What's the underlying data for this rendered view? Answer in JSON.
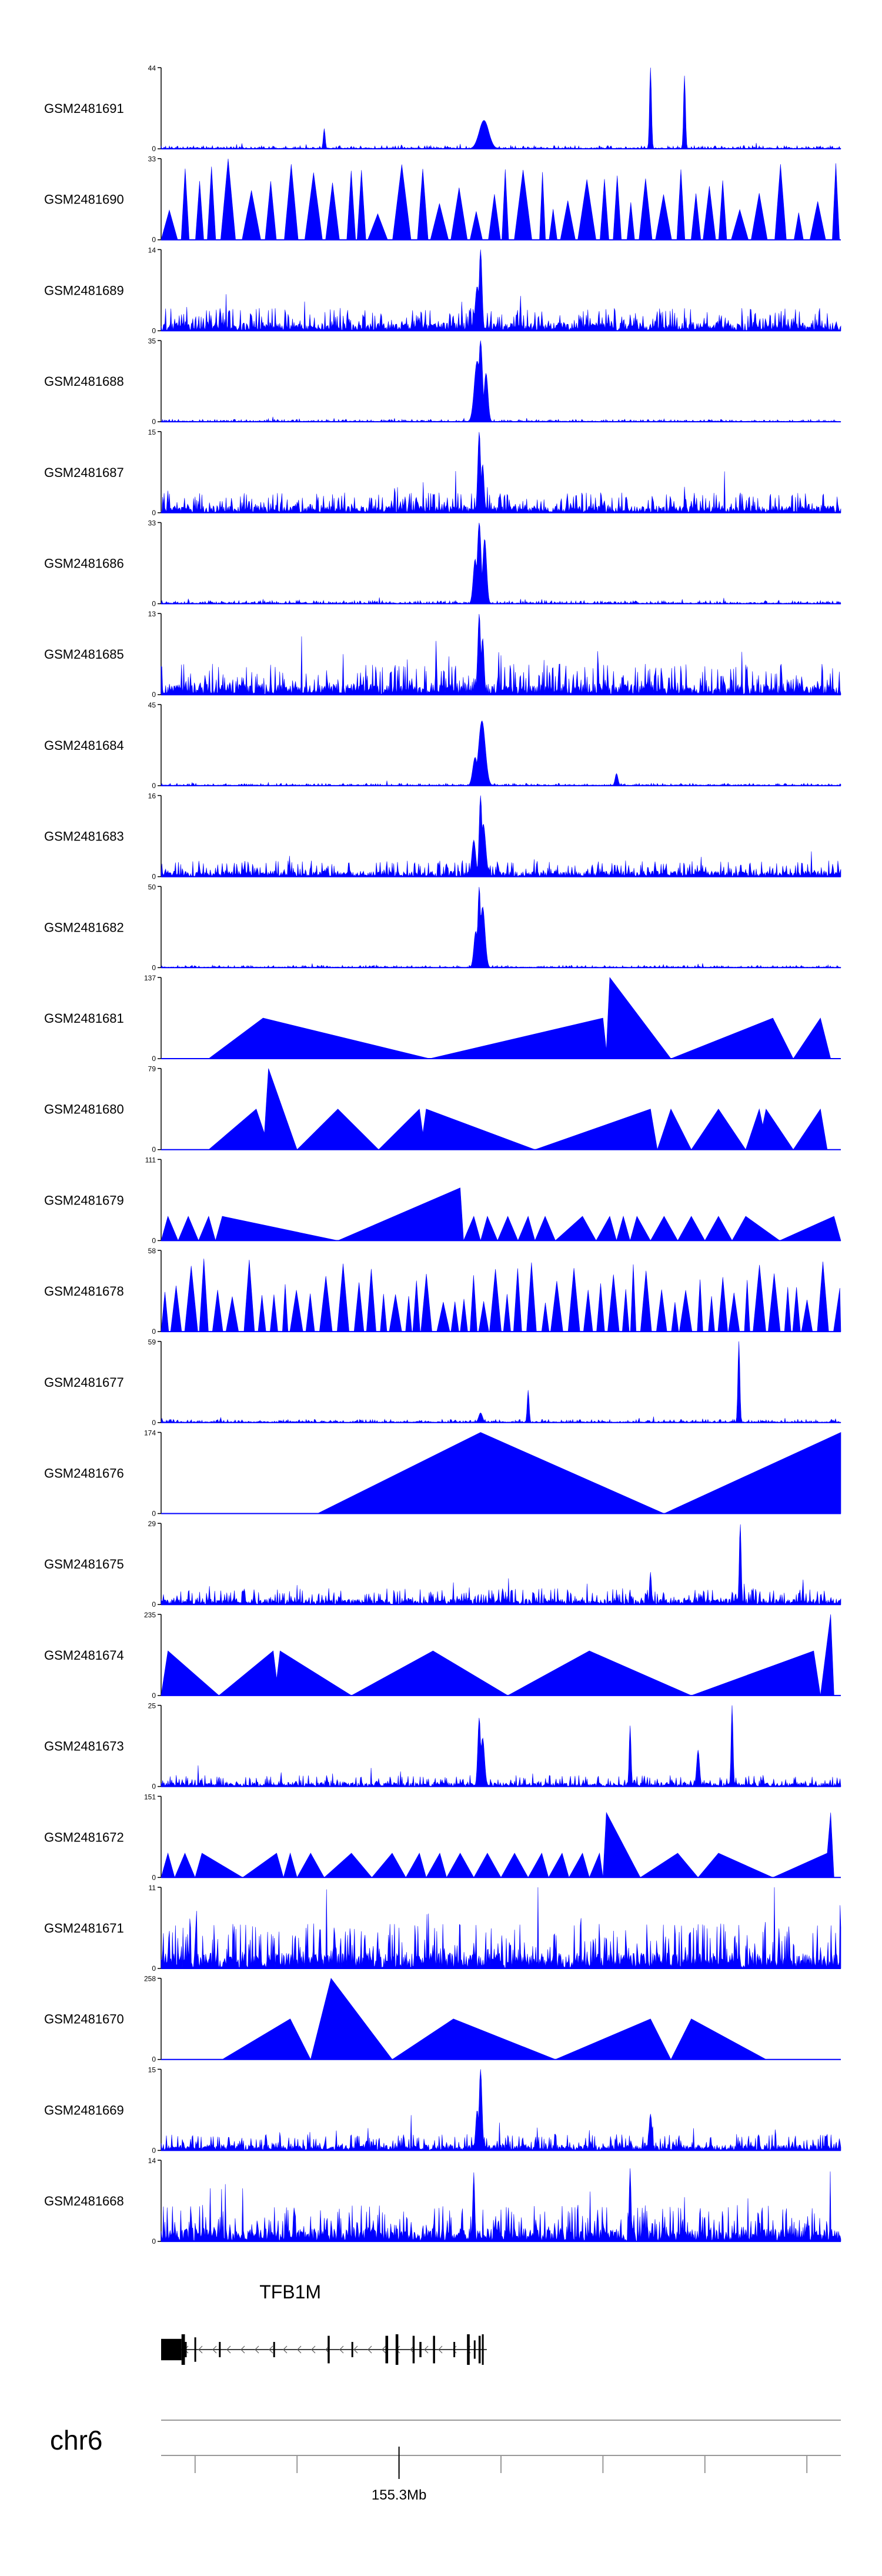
{
  "chart_data": {
    "type": "area",
    "color": "#0000ff",
    "axis_color": "#000000",
    "tracks": [
      {
        "label": "GSM2481691",
        "ymax": "44",
        "ymin": "0",
        "style": "dense",
        "seed": 11,
        "noise": 0.04,
        "peaks": [
          [
            0.475,
            0.35,
            0.01
          ],
          [
            0.72,
            1.0,
            0.002
          ],
          [
            0.77,
            0.9,
            0.002
          ],
          [
            0.24,
            0.25,
            0.002
          ]
        ]
      },
      {
        "label": "GSM2481690",
        "ymax": "33",
        "ymin": "0",
        "style": "spikes",
        "seed": 12,
        "noise": 0.0,
        "peaks": [],
        "tri": {
          "count": 34,
          "gapMin": 0.002,
          "gapMax": 0.012,
          "lowW": 0.008,
          "highW": 0.03,
          "hmin": 0.3,
          "hmax": 1.0
        }
      },
      {
        "label": "GSM2481689",
        "ymax": "14",
        "ymin": "0",
        "style": "dense",
        "seed": 13,
        "noise": 0.28,
        "peaks": [
          [
            0.47,
            1.0,
            0.003
          ],
          [
            0.465,
            0.55,
            0.004
          ]
        ]
      },
      {
        "label": "GSM2481688",
        "ymax": "35",
        "ymin": "0",
        "style": "dense",
        "seed": 14,
        "noise": 0.03,
        "peaks": [
          [
            0.47,
            1.0,
            0.004
          ],
          [
            0.465,
            0.75,
            0.006
          ],
          [
            0.478,
            0.6,
            0.004
          ]
        ]
      },
      {
        "label": "GSM2481687",
        "ymax": "15",
        "ymin": "0",
        "style": "dense",
        "seed": 15,
        "noise": 0.25,
        "peaks": [
          [
            0.468,
            1.0,
            0.003
          ],
          [
            0.473,
            0.6,
            0.003
          ]
        ]
      },
      {
        "label": "GSM2481686",
        "ymax": "33",
        "ymin": "0",
        "style": "dense",
        "seed": 16,
        "noise": 0.04,
        "peaks": [
          [
            0.468,
            1.0,
            0.004
          ],
          [
            0.476,
            0.8,
            0.004
          ],
          [
            0.462,
            0.55,
            0.004
          ]
        ]
      },
      {
        "label": "GSM2481685",
        "ymax": "13",
        "ymin": "0",
        "style": "dense",
        "seed": 17,
        "noise": 0.38,
        "peaks": [
          [
            0.468,
            1.0,
            0.003
          ],
          [
            0.473,
            0.7,
            0.003
          ]
        ]
      },
      {
        "label": "GSM2481684",
        "ymax": "45",
        "ymin": "0",
        "style": "dense",
        "seed": 18,
        "noise": 0.03,
        "peaks": [
          [
            0.472,
            0.8,
            0.007
          ],
          [
            0.462,
            0.35,
            0.005
          ],
          [
            0.67,
            0.15,
            0.003
          ]
        ]
      },
      {
        "label": "GSM2481683",
        "ymax": "16",
        "ymin": "0",
        "style": "dense",
        "seed": 19,
        "noise": 0.2,
        "peaks": [
          [
            0.47,
            1.0,
            0.003
          ],
          [
            0.474,
            0.65,
            0.005
          ],
          [
            0.46,
            0.45,
            0.004
          ]
        ]
      },
      {
        "label": "GSM2481682",
        "ymax": "50",
        "ymin": "0",
        "style": "dense",
        "seed": 20,
        "noise": 0.03,
        "peaks": [
          [
            0.468,
            1.0,
            0.003
          ],
          [
            0.473,
            0.75,
            0.005
          ],
          [
            0.463,
            0.45,
            0.004
          ]
        ]
      },
      {
        "label": "GSM2481681",
        "ymax": "137",
        "ymin": "0",
        "style": "poly",
        "pts": [
          [
            0.07,
            0.0
          ],
          [
            0.15,
            0.5
          ],
          [
            0.395,
            0.0
          ],
          [
            0.65,
            0.5
          ],
          [
            0.655,
            0.1
          ],
          [
            0.66,
            1.0
          ],
          [
            0.75,
            0.0
          ],
          [
            0.9,
            0.5
          ],
          [
            0.93,
            0.0
          ],
          [
            0.97,
            0.5
          ],
          [
            0.985,
            0.0
          ]
        ]
      },
      {
        "label": "GSM2481680",
        "ymax": "79",
        "ymin": "0",
        "style": "poly",
        "pts": [
          [
            0.07,
            0.0
          ],
          [
            0.14,
            0.5
          ],
          [
            0.152,
            0.2
          ],
          [
            0.158,
            1.0
          ],
          [
            0.2,
            0.0
          ],
          [
            0.26,
            0.5
          ],
          [
            0.32,
            0.0
          ],
          [
            0.38,
            0.5
          ],
          [
            0.385,
            0.2
          ],
          [
            0.39,
            0.5
          ],
          [
            0.55,
            0.0
          ],
          [
            0.72,
            0.5
          ],
          [
            0.73,
            0.0
          ],
          [
            0.75,
            0.5
          ],
          [
            0.78,
            0.0
          ],
          [
            0.82,
            0.5
          ],
          [
            0.86,
            0.0
          ],
          [
            0.88,
            0.5
          ],
          [
            0.885,
            0.3
          ],
          [
            0.89,
            0.5
          ],
          [
            0.93,
            0.0
          ],
          [
            0.97,
            0.5
          ],
          [
            0.98,
            0.0
          ]
        ]
      },
      {
        "label": "GSM2481679",
        "ymax": "111",
        "ymin": "0",
        "style": "poly",
        "pts": [
          [
            0.0,
            0.0
          ],
          [
            0.01,
            0.3
          ],
          [
            0.025,
            0.0
          ],
          [
            0.04,
            0.3
          ],
          [
            0.055,
            0.0
          ],
          [
            0.07,
            0.3
          ],
          [
            0.08,
            0.0
          ],
          [
            0.09,
            0.3
          ],
          [
            0.26,
            0.0
          ],
          [
            0.44,
            0.65
          ],
          [
            0.445,
            0.0
          ],
          [
            0.46,
            0.3
          ],
          [
            0.47,
            0.0
          ],
          [
            0.48,
            0.3
          ],
          [
            0.495,
            0.0
          ],
          [
            0.51,
            0.3
          ],
          [
            0.525,
            0.0
          ],
          [
            0.54,
            0.3
          ],
          [
            0.55,
            0.0
          ],
          [
            0.565,
            0.3
          ],
          [
            0.58,
            0.0
          ],
          [
            0.62,
            0.3
          ],
          [
            0.64,
            0.0
          ],
          [
            0.66,
            0.3
          ],
          [
            0.67,
            0.0
          ],
          [
            0.68,
            0.3
          ],
          [
            0.69,
            0.0
          ],
          [
            0.7,
            0.3
          ],
          [
            0.72,
            0.0
          ],
          [
            0.74,
            0.3
          ],
          [
            0.76,
            0.0
          ],
          [
            0.78,
            0.3
          ],
          [
            0.8,
            0.0
          ],
          [
            0.82,
            0.3
          ],
          [
            0.84,
            0.0
          ],
          [
            0.86,
            0.3
          ],
          [
            0.91,
            0.0
          ],
          [
            0.99,
            0.3
          ],
          [
            1.0,
            0.0
          ]
        ]
      },
      {
        "label": "GSM2481678",
        "ymax": "58",
        "ymin": "0",
        "style": "spikes",
        "seed": 21,
        "noise": 0.0,
        "peaks": [],
        "tri": {
          "count": 36,
          "gapMin": 0.001,
          "gapMax": 0.008,
          "lowW": 0.008,
          "highW": 0.02,
          "hmin": 0.35,
          "hmax": 0.9
        }
      },
      {
        "label": "GSM2481677",
        "ymax": "59",
        "ymin": "0",
        "style": "dense",
        "seed": 22,
        "noise": 0.04,
        "peaks": [
          [
            0.85,
            1.0,
            0.002
          ],
          [
            0.54,
            0.4,
            0.002
          ],
          [
            0.47,
            0.12,
            0.004
          ]
        ]
      },
      {
        "label": "GSM2481676",
        "ymax": "174",
        "ymin": "0",
        "style": "poly",
        "pts": [
          [
            0.23,
            0.0
          ],
          [
            0.47,
            1.0
          ],
          [
            0.74,
            0.0
          ],
          [
            1.0,
            1.0
          ],
          [
            1.0,
            0.0
          ]
        ]
      },
      {
        "label": "GSM2481675",
        "ymax": "29",
        "ymin": "0",
        "style": "dense",
        "seed": 23,
        "noise": 0.2,
        "peaks": [
          [
            0.852,
            1.0,
            0.002
          ],
          [
            0.72,
            0.4,
            0.002
          ]
        ]
      },
      {
        "label": "GSM2481674",
        "ymax": "235",
        "ymin": "0",
        "style": "poly",
        "pts": [
          [
            0.0,
            0.0
          ],
          [
            0.01,
            0.55
          ],
          [
            0.085,
            0.0
          ],
          [
            0.165,
            0.55
          ],
          [
            0.17,
            0.2
          ],
          [
            0.175,
            0.55
          ],
          [
            0.28,
            0.0
          ],
          [
            0.4,
            0.55
          ],
          [
            0.51,
            0.0
          ],
          [
            0.63,
            0.55
          ],
          [
            0.78,
            0.0
          ],
          [
            0.96,
            0.55
          ],
          [
            0.97,
            0.0
          ],
          [
            0.985,
            1.0
          ],
          [
            0.99,
            0.0
          ]
        ]
      },
      {
        "label": "GSM2481673",
        "ymax": "25",
        "ymin": "0",
        "style": "dense",
        "seed": 24,
        "noise": 0.14,
        "peaks": [
          [
            0.468,
            0.85,
            0.003
          ],
          [
            0.473,
            0.6,
            0.004
          ],
          [
            0.84,
            1.0,
            0.002
          ],
          [
            0.69,
            0.75,
            0.002
          ],
          [
            0.79,
            0.45,
            0.003
          ]
        ]
      },
      {
        "label": "GSM2481672",
        "ymax": "151",
        "ymin": "0",
        "style": "poly",
        "pts": [
          [
            0.0,
            0.0
          ],
          [
            0.01,
            0.3
          ],
          [
            0.02,
            0.0
          ],
          [
            0.035,
            0.3
          ],
          [
            0.05,
            0.0
          ],
          [
            0.06,
            0.3
          ],
          [
            0.12,
            0.0
          ],
          [
            0.17,
            0.3
          ],
          [
            0.18,
            0.0
          ],
          [
            0.19,
            0.3
          ],
          [
            0.2,
            0.0
          ],
          [
            0.22,
            0.3
          ],
          [
            0.24,
            0.0
          ],
          [
            0.28,
            0.3
          ],
          [
            0.31,
            0.0
          ],
          [
            0.34,
            0.3
          ],
          [
            0.36,
            0.0
          ],
          [
            0.38,
            0.3
          ],
          [
            0.39,
            0.0
          ],
          [
            0.41,
            0.3
          ],
          [
            0.42,
            0.0
          ],
          [
            0.44,
            0.3
          ],
          [
            0.46,
            0.0
          ],
          [
            0.48,
            0.3
          ],
          [
            0.5,
            0.0
          ],
          [
            0.52,
            0.3
          ],
          [
            0.54,
            0.0
          ],
          [
            0.56,
            0.3
          ],
          [
            0.57,
            0.0
          ],
          [
            0.59,
            0.3
          ],
          [
            0.6,
            0.0
          ],
          [
            0.62,
            0.3
          ],
          [
            0.63,
            0.0
          ],
          [
            0.645,
            0.3
          ],
          [
            0.65,
            0.0
          ],
          [
            0.655,
            0.8
          ],
          [
            0.705,
            0.0
          ],
          [
            0.76,
            0.3
          ],
          [
            0.79,
            0.0
          ],
          [
            0.82,
            0.3
          ],
          [
            0.9,
            0.0
          ],
          [
            0.98,
            0.3
          ],
          [
            0.985,
            0.8
          ],
          [
            0.99,
            0.0
          ]
        ]
      },
      {
        "label": "GSM2481671",
        "ymax": "11",
        "ymin": "0",
        "style": "dense",
        "seed": 25,
        "noise": 0.55,
        "peaks": []
      },
      {
        "label": "GSM2481670",
        "ymax": "258",
        "ymin": "0",
        "style": "poly",
        "pts": [
          [
            0.09,
            0.0
          ],
          [
            0.19,
            0.5
          ],
          [
            0.22,
            0.0
          ],
          [
            0.25,
            1.0
          ],
          [
            0.34,
            0.0
          ],
          [
            0.43,
            0.5
          ],
          [
            0.58,
            0.0
          ],
          [
            0.72,
            0.5
          ],
          [
            0.75,
            0.0
          ],
          [
            0.78,
            0.5
          ],
          [
            0.89,
            0.0
          ]
        ]
      },
      {
        "label": "GSM2481669",
        "ymax": "15",
        "ymin": "0",
        "style": "dense",
        "seed": 26,
        "noise": 0.2,
        "peaks": [
          [
            0.47,
            1.0,
            0.003
          ],
          [
            0.465,
            0.5,
            0.003
          ],
          [
            0.72,
            0.45,
            0.003
          ]
        ]
      },
      {
        "label": "GSM2481668",
        "ymax": "14",
        "ymin": "0",
        "style": "dense",
        "seed": 27,
        "noise": 0.45,
        "peaks": [
          [
            0.46,
            0.85,
            0.002
          ],
          [
            0.69,
            0.9,
            0.002
          ]
        ]
      }
    ],
    "gene": {
      "name": "TFB1M",
      "exons": [
        [
          0.0,
          0.03,
          0.7
        ],
        [
          0.03,
          0.035,
          1.0
        ],
        [
          0.035,
          0.037,
          0.5
        ],
        [
          0.049,
          0.051,
          0.8
        ],
        [
          0.085,
          0.087,
          0.5
        ],
        [
          0.165,
          0.167,
          0.5
        ],
        [
          0.245,
          0.248,
          0.9
        ],
        [
          0.28,
          0.282,
          0.5
        ],
        [
          0.33,
          0.334,
          0.9
        ],
        [
          0.345,
          0.349,
          1.0
        ],
        [
          0.37,
          0.373,
          0.9
        ],
        [
          0.38,
          0.383,
          0.5
        ],
        [
          0.4,
          0.403,
          0.9
        ],
        [
          0.43,
          0.432,
          0.5
        ],
        [
          0.45,
          0.454,
          1.0
        ],
        [
          0.46,
          0.462,
          0.6
        ],
        [
          0.467,
          0.47,
          0.9
        ],
        [
          0.472,
          0.474,
          1.0
        ]
      ],
      "start_frac": 0.0,
      "end_frac": 0.474
    },
    "chromosome": "chr6",
    "axis": {
      "tick_positions": [
        0.05,
        0.2,
        0.35,
        0.5,
        0.65,
        0.8,
        0.95
      ],
      "labeled_tick": {
        "label": "155.3Mb",
        "pos": 0.35
      }
    }
  }
}
